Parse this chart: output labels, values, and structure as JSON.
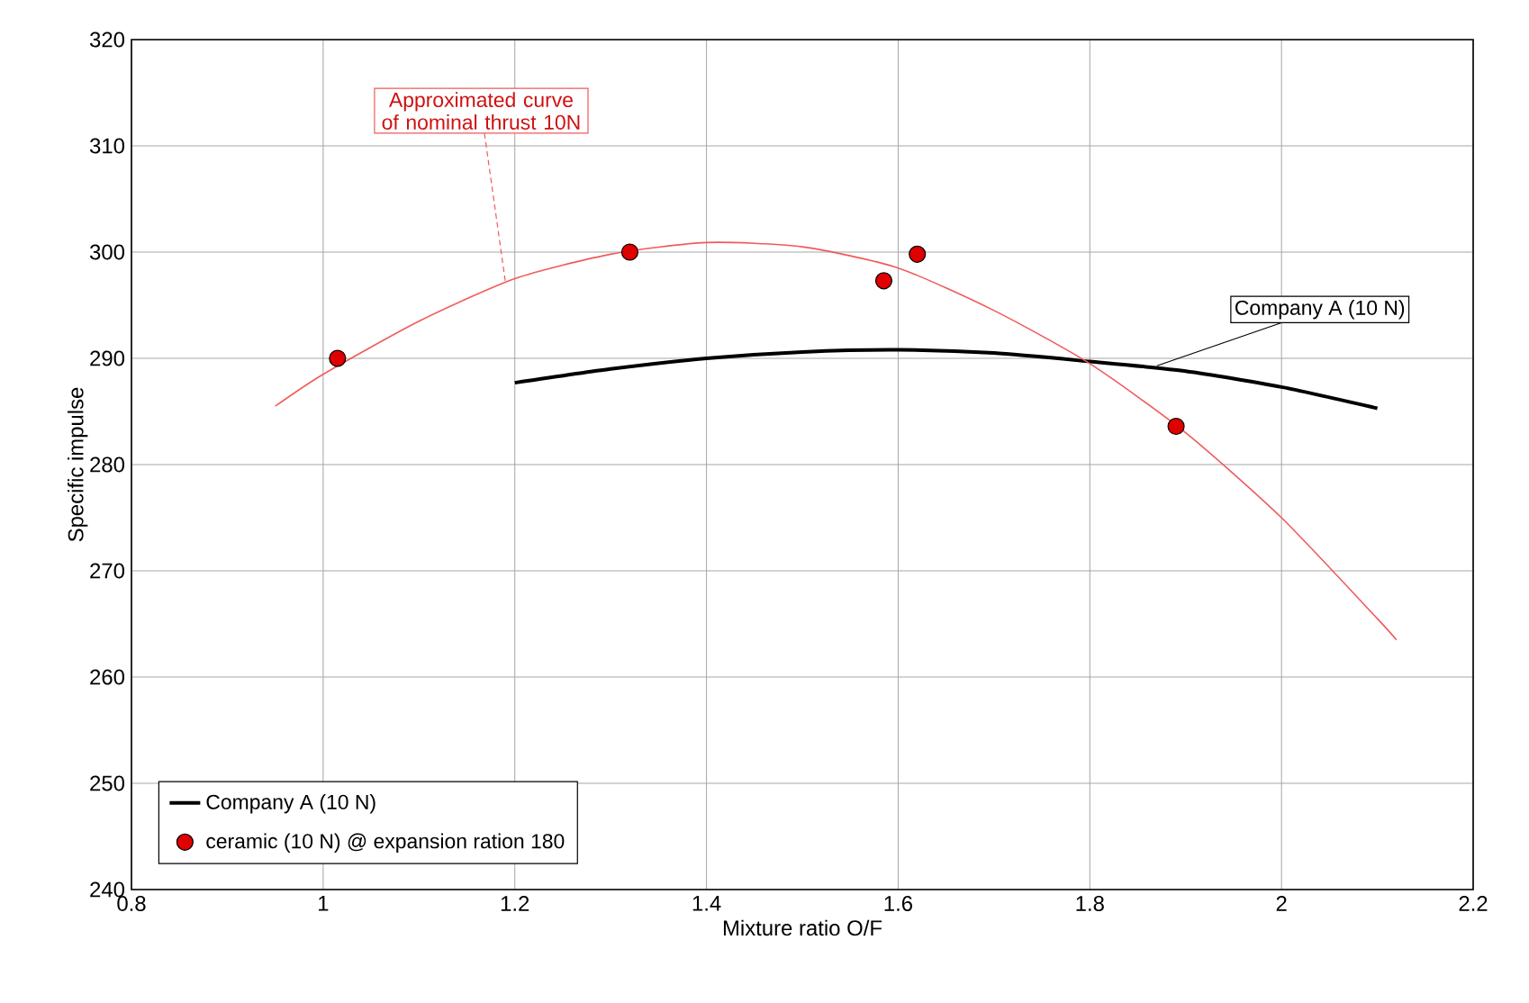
{
  "chart_data": {
    "type": "line",
    "xlabel": "Mixture ratio O/F",
    "ylabel": "Specific impulse",
    "xlim": [
      0.8,
      2.2
    ],
    "xticks": [
      0.8,
      1,
      1.2,
      1.4,
      1.6,
      1.8,
      2,
      2.2
    ],
    "ylim": [
      240,
      320
    ],
    "yticks": [
      240,
      250,
      260,
      270,
      280,
      290,
      300,
      310,
      320
    ],
    "grid": true,
    "legend": "bottom left",
    "series": [
      {
        "name": "Company A (10 N)",
        "color": "#000000",
        "x": [
          1.2,
          1.3,
          1.4,
          1.5,
          1.6,
          1.7,
          1.8,
          1.9,
          2.0,
          2.1
        ],
        "values": [
          287.7,
          289,
          290,
          290.6,
          290.8,
          290.5,
          289.7,
          288.8,
          287.3,
          285.3
        ]
      },
      {
        "color": "#f05a5a",
        "x": [
          0.95,
          1.0,
          1.1,
          1.2,
          1.3,
          1.4,
          1.5,
          1.6,
          1.7,
          1.8,
          1.9,
          2.0,
          2.1,
          2.12
        ],
        "values": [
          285.5,
          288.5,
          293.5,
          297.5,
          299.8,
          300.9,
          300.5,
          298.5,
          294.5,
          289.5,
          283,
          275,
          265.5,
          263.5
        ]
      },
      {
        "name": "ceramic (10 N) @ expansion ration 180",
        "type": "scatter",
        "marker": "circle",
        "color": "#e00000",
        "x": [
          1.015,
          1.32,
          1.585,
          1.62,
          1.89
        ],
        "values": [
          290,
          300,
          297.3,
          299.8,
          283.6
        ]
      }
    ],
    "annotations": [
      {
        "text": "Approximated curve of nominal thrust 10N",
        "x": 1.19,
        "y": 297.3
      },
      {
        "text": "Company A (10 N)",
        "x": 1.87,
        "y": 289.3
      }
    ]
  }
}
